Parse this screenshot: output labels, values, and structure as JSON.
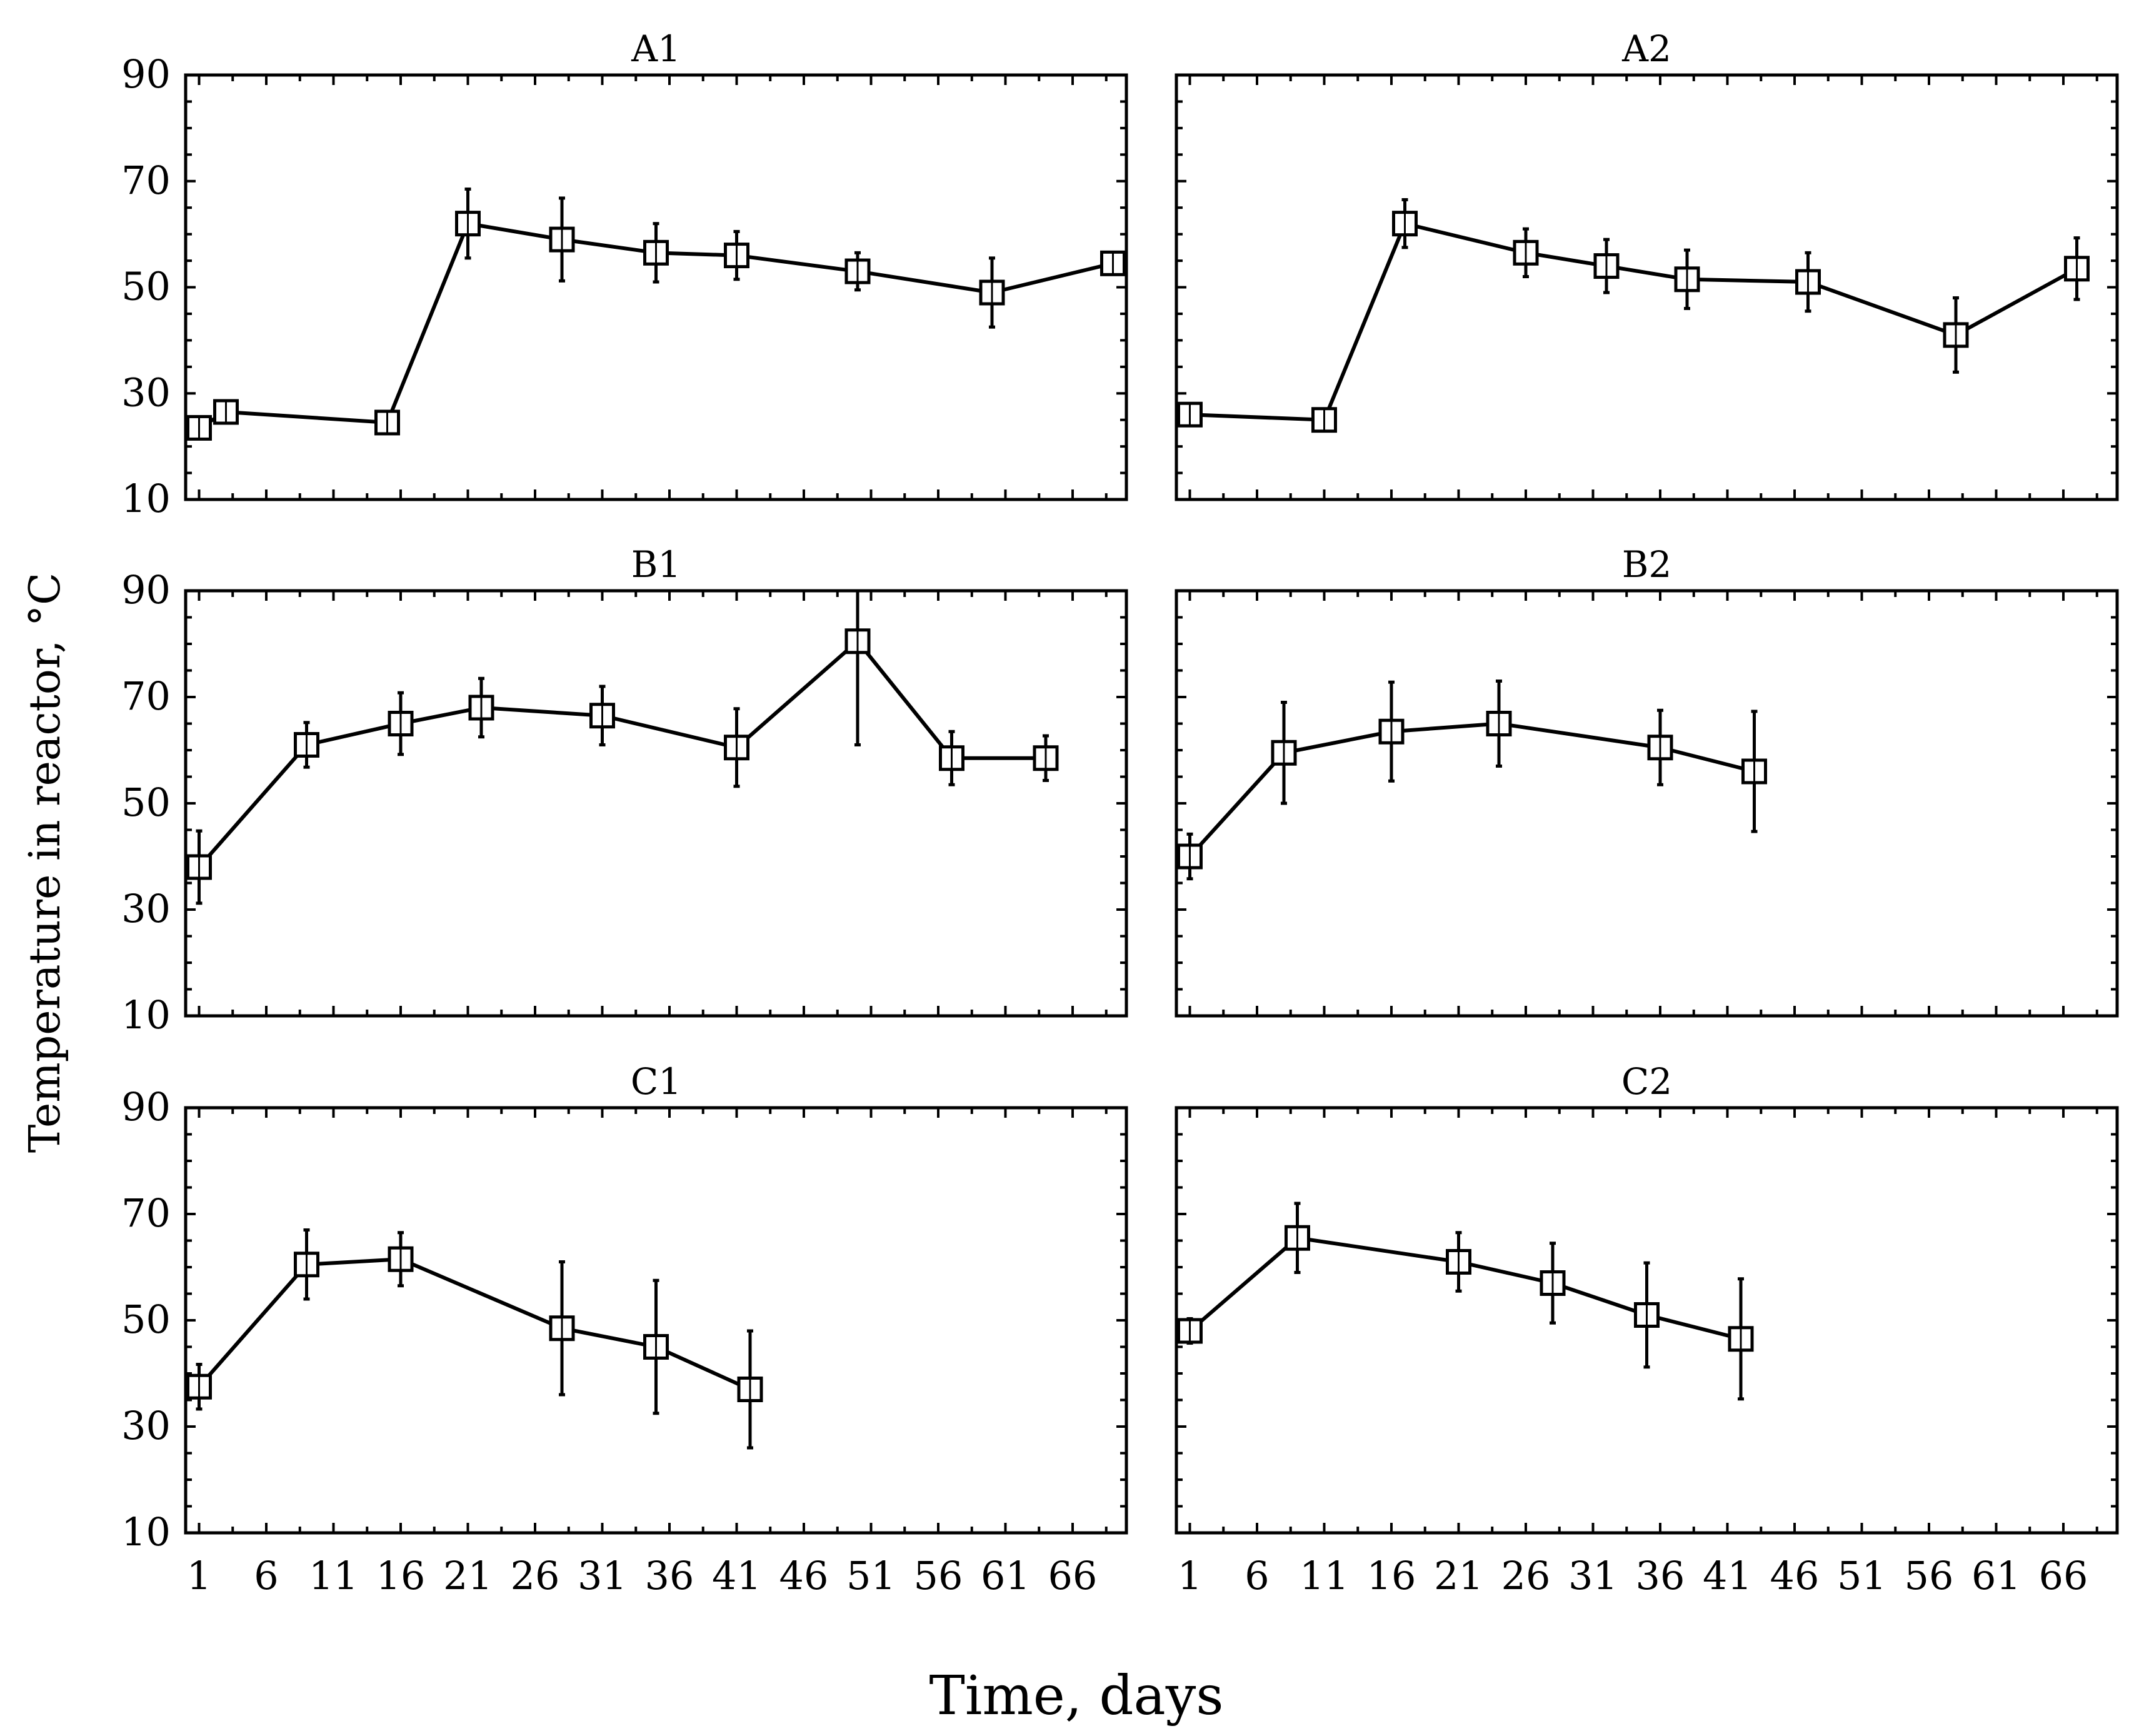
{
  "figure": {
    "ylabel": "Temperature in reactor, °C",
    "xlabel": "Time, days"
  },
  "chart_data": [
    {
      "type": "line",
      "title": "A1",
      "xlim": [
        0,
        70
      ],
      "ylim": [
        10,
        90
      ],
      "xticks": [
        1,
        6,
        11,
        16,
        21,
        26,
        31,
        36,
        41,
        46,
        51,
        56,
        61,
        66
      ],
      "yticks": [
        10,
        30,
        50,
        70,
        90
      ],
      "x": [
        1,
        3,
        15,
        21,
        28,
        35,
        41,
        50,
        60,
        69
      ],
      "values": [
        23.5,
        26.5,
        24.5,
        62,
        59,
        56.5,
        56,
        53,
        49,
        54.5
      ],
      "error": [
        2,
        1.5,
        1.5,
        6.5,
        7.8,
        5.5,
        4.5,
        3.5,
        6.5,
        2
      ]
    },
    {
      "type": "line",
      "title": "A2",
      "xlim": [
        0,
        70
      ],
      "ylim": [
        10,
        90
      ],
      "xticks": [
        1,
        6,
        11,
        16,
        21,
        26,
        31,
        36,
        41,
        46,
        51,
        56,
        61,
        66
      ],
      "yticks": [
        10,
        30,
        50,
        70,
        90
      ],
      "x": [
        1,
        11,
        17,
        26,
        32,
        38,
        47,
        58,
        67
      ],
      "values": [
        26,
        25,
        62,
        56.5,
        54,
        51.5,
        51,
        41,
        53.5
      ],
      "error": [
        1.5,
        1.5,
        4.5,
        4.5,
        5,
        5.5,
        5.5,
        7,
        5.8
      ]
    },
    {
      "type": "line",
      "title": "B1",
      "xlim": [
        0,
        70
      ],
      "ylim": [
        10,
        90
      ],
      "xticks": [
        1,
        6,
        11,
        16,
        21,
        26,
        31,
        36,
        41,
        46,
        51,
        56,
        61,
        66
      ],
      "yticks": [
        10,
        30,
        50,
        70,
        90
      ],
      "x": [
        1,
        9,
        16,
        22,
        31,
        41,
        50,
        57,
        64
      ],
      "values": [
        38,
        61,
        65,
        68,
        66.5,
        60.5,
        80.5,
        58.5,
        58.5
      ],
      "error": [
        6.8,
        4.2,
        5.8,
        5.5,
        5.5,
        7.3,
        19.5,
        5,
        4.2
      ]
    },
    {
      "type": "line",
      "title": "B2",
      "xlim": [
        0,
        70
      ],
      "ylim": [
        10,
        90
      ],
      "xticks": [
        1,
        6,
        11,
        16,
        21,
        26,
        31,
        36,
        41,
        46,
        51,
        56,
        61,
        66
      ],
      "yticks": [
        10,
        30,
        50,
        70,
        90
      ],
      "x": [
        1,
        8,
        16,
        24,
        36,
        43
      ],
      "values": [
        40,
        59.5,
        63.5,
        65,
        60.5,
        56
      ],
      "error": [
        4.2,
        9.5,
        9.3,
        8,
        7,
        11.3
      ]
    },
    {
      "type": "line",
      "title": "C1",
      "xlim": [
        0,
        70
      ],
      "ylim": [
        10,
        90
      ],
      "xticks": [
        1,
        6,
        11,
        16,
        21,
        26,
        31,
        36,
        41,
        46,
        51,
        56,
        61,
        66
      ],
      "yticks": [
        10,
        30,
        50,
        70,
        90
      ],
      "x": [
        1,
        9,
        16,
        28,
        35,
        42
      ],
      "values": [
        37.5,
        60.5,
        61.5,
        48.5,
        45,
        37
      ],
      "error": [
        4.2,
        6.5,
        5,
        12.5,
        12.5,
        11
      ]
    },
    {
      "type": "line",
      "title": "C2",
      "xlim": [
        0,
        70
      ],
      "ylim": [
        10,
        90
      ],
      "xticks": [
        1,
        6,
        11,
        16,
        21,
        26,
        31,
        36,
        41,
        46,
        51,
        56,
        61,
        66
      ],
      "yticks": [
        10,
        30,
        50,
        70,
        90
      ],
      "x": [
        1,
        9,
        21,
        28,
        35,
        42
      ],
      "values": [
        48,
        65.5,
        61,
        57,
        51,
        46.5
      ],
      "error": [
        2.3,
        6.5,
        5.5,
        7.5,
        9.8,
        11.3
      ]
    }
  ]
}
